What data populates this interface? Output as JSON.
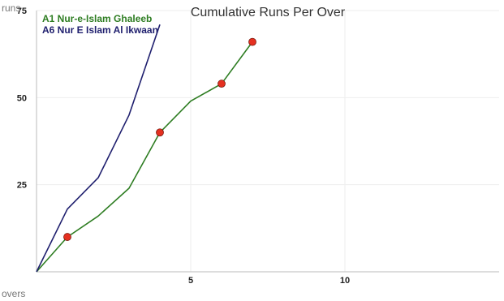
{
  "chart_data": {
    "type": "line",
    "title": "Cumulative Runs Per Over",
    "xlabel": "overs",
    "ylabel": "runs",
    "xlim": [
      0,
      15
    ],
    "ylim": [
      0,
      75
    ],
    "x_ticks": [
      5,
      10
    ],
    "y_ticks": [
      25,
      50,
      75
    ],
    "grid": true,
    "legend_position": "top-left",
    "series": [
      {
        "name": "A1 Nur-e-Islam Ghaleeb",
        "color": "#2e7d22",
        "x": [
          0,
          1,
          2,
          3,
          4,
          5,
          6,
          7
        ],
        "y": [
          0,
          10,
          16,
          24,
          40,
          49,
          54,
          66
        ],
        "wicket_overs": [
          1,
          4,
          6,
          7
        ]
      },
      {
        "name": "A6 Nur E Islam Al Ikwaan",
        "color": "#1f1f6e",
        "x": [
          0,
          1,
          2,
          3,
          4
        ],
        "y": [
          0,
          18,
          27,
          45,
          71
        ],
        "wicket_overs": []
      }
    ],
    "wicket_marker_color": "#e53020"
  }
}
